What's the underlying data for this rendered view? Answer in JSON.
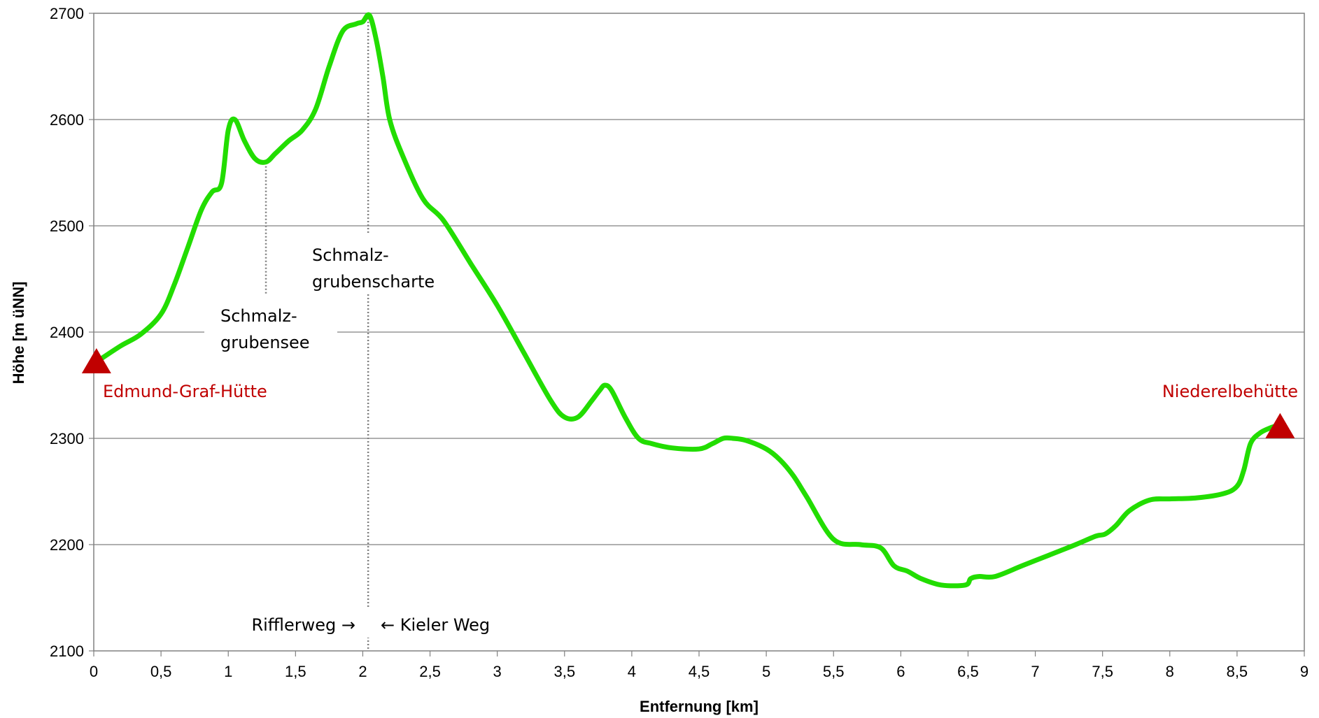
{
  "chart_data": {
    "type": "line",
    "xlabel": "Entfernung [km]",
    "ylabel": "Höhe [m üNN]",
    "xlim": [
      0,
      9
    ],
    "ylim": [
      2100,
      2700
    ],
    "x_ticks": [
      "0",
      "0,5",
      "1",
      "1,5",
      "2",
      "2,5",
      "3",
      "3,5",
      "4",
      "4,5",
      "5",
      "5,5",
      "6",
      "6,5",
      "7",
      "7,5",
      "8",
      "8,5",
      "9"
    ],
    "x_tick_values": [
      0,
      0.5,
      1,
      1.5,
      2,
      2.5,
      3,
      3.5,
      4,
      4.5,
      5,
      5.5,
      6,
      6.5,
      7,
      7.5,
      8,
      8.5,
      9
    ],
    "y_ticks": [
      "2100",
      "2200",
      "2300",
      "2400",
      "2500",
      "2600",
      "2700"
    ],
    "y_tick_values": [
      2100,
      2200,
      2300,
      2400,
      2500,
      2600,
      2700
    ],
    "grid": "horizontal",
    "line_color": "#22dd00",
    "series": [
      {
        "x": [
          0.02,
          0.2,
          0.35,
          0.5,
          0.6,
          0.7,
          0.8,
          0.88,
          0.95,
          1.0,
          1.05,
          1.12,
          1.2,
          1.28,
          1.35,
          1.45,
          1.55,
          1.65,
          1.75,
          1.85,
          1.95,
          2.0,
          2.05,
          2.1,
          2.15,
          2.2,
          2.3,
          2.45,
          2.6,
          2.8,
          3.0,
          3.2,
          3.4,
          3.5,
          3.6,
          3.7,
          3.76,
          3.8,
          3.85,
          3.95,
          4.05,
          4.15,
          4.3,
          4.5,
          4.6,
          4.68,
          4.75,
          4.85,
          5.0,
          5.1,
          5.2,
          5.3,
          5.5,
          5.7,
          5.85,
          5.95,
          6.05,
          6.15,
          6.3,
          6.48,
          6.52,
          6.58,
          6.7,
          6.9,
          7.1,
          7.3,
          7.45,
          7.52,
          7.6,
          7.7,
          7.85,
          8.0,
          8.2,
          8.4,
          8.5,
          8.55,
          8.6,
          8.67,
          8.75,
          8.8
        ],
        "y": [
          2372,
          2387,
          2398,
          2417,
          2445,
          2480,
          2515,
          2532,
          2540,
          2590,
          2600,
          2580,
          2563,
          2560,
          2568,
          2580,
          2590,
          2610,
          2650,
          2683,
          2690,
          2692,
          2698,
          2675,
          2640,
          2600,
          2565,
          2525,
          2505,
          2465,
          2425,
          2380,
          2335,
          2320,
          2320,
          2335,
          2345,
          2350,
          2345,
          2320,
          2300,
          2295,
          2291,
          2290,
          2295,
          2300,
          2300,
          2298,
          2290,
          2280,
          2265,
          2245,
          2205,
          2200,
          2197,
          2180,
          2175,
          2168,
          2162,
          2162,
          2168,
          2170,
          2170,
          2180,
          2190,
          2200,
          2208,
          2210,
          2218,
          2232,
          2242,
          2243,
          2244,
          2248,
          2255,
          2270,
          2295,
          2305,
          2310,
          2312
        ]
      }
    ],
    "annotations": {
      "see_line1": "Schmalz-",
      "see_line2": "grubensee",
      "scharte_line1": "Schmalz-",
      "scharte_line2": "grubenscharte",
      "route_left": "Rifflerweg →",
      "route_right": "← Kieler Weg"
    },
    "huts": {
      "start": {
        "label": "Edmund-Graf-Hütte",
        "x": 0.02,
        "y": 2373
      },
      "end": {
        "label": "Niederelbehütte",
        "x": 8.82,
        "y": 2312
      },
      "color": "#c00000"
    },
    "annotation_lines": {
      "see_x": 1.28,
      "scharte_x": 2.04
    }
  }
}
